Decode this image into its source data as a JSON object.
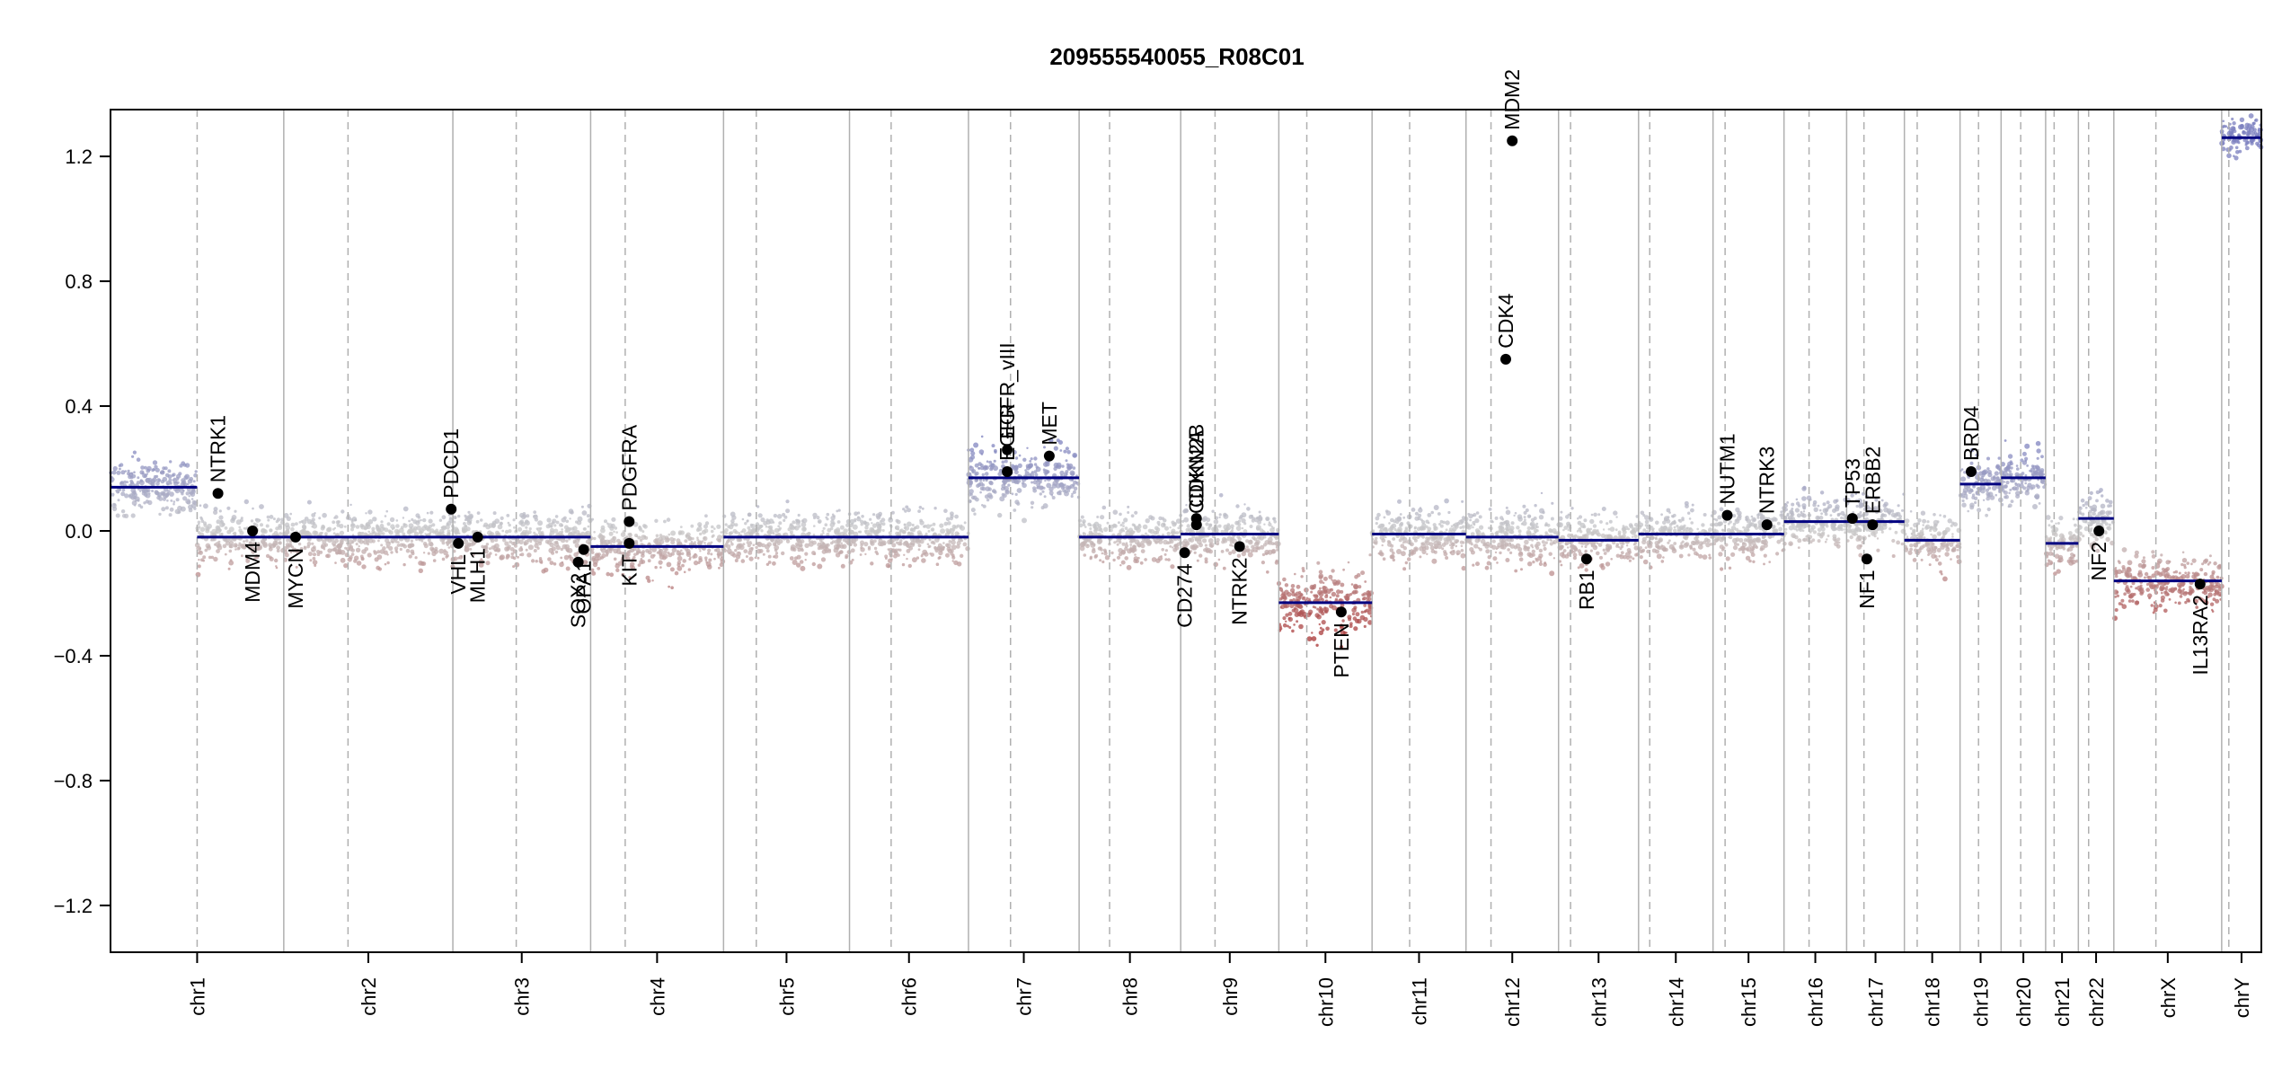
{
  "chart_data": {
    "type": "scatter",
    "title": "209555540055_R08C01",
    "xlabel": "",
    "ylabel": "",
    "ylim": [
      -1.35,
      1.35
    ],
    "yticks": [
      -1.2,
      -0.8,
      -0.4,
      0.0,
      0.4,
      0.8,
      1.2
    ],
    "ytick_labels": [
      "−1.2",
      "−0.8",
      "−0.4",
      "0.0",
      "0.4",
      "0.8",
      "1.2"
    ],
    "grid": false,
    "legend": "none",
    "colors": {
      "gain": "#7b7fbf",
      "neutral": "#c8c8c8",
      "loss": "#a83232",
      "segment": "#000080",
      "boundary": "#b0b0b0",
      "gene_point": "#000000"
    },
    "chromosomes": [
      {
        "name": "chr1",
        "size": 249,
        "centromere": 0.5
      },
      {
        "name": "chr2",
        "size": 243,
        "centromere": 0.38
      },
      {
        "name": "chr3",
        "size": 198,
        "centromere": 0.46
      },
      {
        "name": "chr4",
        "size": 191,
        "centromere": 0.26
      },
      {
        "name": "chr5",
        "size": 181,
        "centromere": 0.26
      },
      {
        "name": "chr6",
        "size": 171,
        "centromere": 0.35
      },
      {
        "name": "chr7",
        "size": 159,
        "centromere": 0.38
      },
      {
        "name": "chr8",
        "size": 146,
        "centromere": 0.3
      },
      {
        "name": "chr9",
        "size": 141,
        "centromere": 0.35
      },
      {
        "name": "chr10",
        "size": 134,
        "centromere": 0.3
      },
      {
        "name": "chr11",
        "size": 135,
        "centromere": 0.4
      },
      {
        "name": "chr12",
        "size": 133,
        "centromere": 0.27
      },
      {
        "name": "chr13",
        "size": 115,
        "centromere": 0.15
      },
      {
        "name": "chr14",
        "size": 107,
        "centromere": 0.15
      },
      {
        "name": "chr15",
        "size": 102,
        "centromere": 0.17
      },
      {
        "name": "chr16",
        "size": 90,
        "centromere": 0.4
      },
      {
        "name": "chr17",
        "size": 83,
        "centromere": 0.3
      },
      {
        "name": "chr18",
        "size": 80,
        "centromere": 0.23
      },
      {
        "name": "chr19",
        "size": 59,
        "centromere": 0.45
      },
      {
        "name": "chr20",
        "size": 64,
        "centromere": 0.44
      },
      {
        "name": "chr21",
        "size": 47,
        "centromere": 0.26
      },
      {
        "name": "chr22",
        "size": 51,
        "centromere": 0.29
      },
      {
        "name": "chrX",
        "size": 155,
        "centromere": 0.39
      },
      {
        "name": "chrY",
        "size": 57,
        "centromere": 0.18
      }
    ],
    "series": [
      {
        "profile": [
          {
            "chr": "chr1",
            "seg": [
              [
                0.0,
                0.5,
                0.14
              ],
              [
                0.5,
                1.0,
                -0.02
              ]
            ],
            "spread": 0.07
          },
          {
            "chr": "chr2",
            "seg": [
              [
                0.0,
                1.0,
                -0.02
              ]
            ],
            "spread": 0.07
          },
          {
            "chr": "chr3",
            "seg": [
              [
                0.0,
                1.0,
                -0.02
              ]
            ],
            "spread": 0.07
          },
          {
            "chr": "chr4",
            "seg": [
              [
                0.0,
                1.0,
                -0.05
              ]
            ],
            "spread": 0.07
          },
          {
            "chr": "chr5",
            "seg": [
              [
                0.0,
                1.0,
                -0.02
              ]
            ],
            "spread": 0.07
          },
          {
            "chr": "chr6",
            "seg": [
              [
                0.0,
                1.0,
                -0.02
              ]
            ],
            "spread": 0.07
          },
          {
            "chr": "chr7",
            "seg": [
              [
                0.0,
                1.0,
                0.17
              ]
            ],
            "spread": 0.08
          },
          {
            "chr": "chr8",
            "seg": [
              [
                0.0,
                1.0,
                -0.02
              ]
            ],
            "spread": 0.07
          },
          {
            "chr": "chr9",
            "seg": [
              [
                0.0,
                1.0,
                -0.01
              ]
            ],
            "spread": 0.07
          },
          {
            "chr": "chr10",
            "seg": [
              [
                0.0,
                1.0,
                -0.23
              ]
            ],
            "spread": 0.09
          },
          {
            "chr": "chr11",
            "seg": [
              [
                0.0,
                1.0,
                -0.01
              ]
            ],
            "spread": 0.07
          },
          {
            "chr": "chr12",
            "seg": [
              [
                0.0,
                1.0,
                -0.02
              ]
            ],
            "spread": 0.07
          },
          {
            "chr": "chr13",
            "seg": [
              [
                0.0,
                1.0,
                -0.03
              ]
            ],
            "spread": 0.07
          },
          {
            "chr": "chr14",
            "seg": [
              [
                0.0,
                1.0,
                -0.01
              ]
            ],
            "spread": 0.07
          },
          {
            "chr": "chr15",
            "seg": [
              [
                0.0,
                1.0,
                -0.01
              ]
            ],
            "spread": 0.07
          },
          {
            "chr": "chr16",
            "seg": [
              [
                0.0,
                1.0,
                0.03
              ]
            ],
            "spread": 0.07
          },
          {
            "chr": "chr17",
            "seg": [
              [
                0.0,
                1.0,
                0.03
              ]
            ],
            "spread": 0.07
          },
          {
            "chr": "chr18",
            "seg": [
              [
                0.0,
                1.0,
                -0.03
              ]
            ],
            "spread": 0.07
          },
          {
            "chr": "chr19",
            "seg": [
              [
                0.0,
                1.0,
                0.15
              ]
            ],
            "spread": 0.07
          },
          {
            "chr": "chr20",
            "seg": [
              [
                0.0,
                1.0,
                0.17
              ]
            ],
            "spread": 0.07
          },
          {
            "chr": "chr21",
            "seg": [
              [
                0.0,
                1.0,
                -0.04
              ]
            ],
            "spread": 0.07
          },
          {
            "chr": "chr22",
            "seg": [
              [
                0.0,
                1.0,
                0.04
              ]
            ],
            "spread": 0.07
          },
          {
            "chr": "chrX",
            "seg": [
              [
                0.0,
                1.0,
                -0.16
              ]
            ],
            "spread": 0.07
          },
          {
            "chr": "chrY",
            "seg": [
              [
                0.0,
                1.0,
                1.26
              ]
            ],
            "spread": 0.05
          }
        ]
      }
    ],
    "genes": [
      {
        "name": "NTRK1",
        "chr": "chr1",
        "pos": 0.62,
        "value": 0.12
      },
      {
        "name": "MDM4",
        "chr": "chr1",
        "pos": 0.82,
        "value": 0.0
      },
      {
        "name": "MYCN",
        "chr": "chr2",
        "pos": 0.07,
        "value": -0.02
      },
      {
        "name": "PDCD1",
        "chr": "chr2",
        "pos": 0.99,
        "value": 0.07
      },
      {
        "name": "VHL",
        "chr": "chr3",
        "pos": 0.04,
        "value": -0.04
      },
      {
        "name": "MLH1",
        "chr": "chr3",
        "pos": 0.18,
        "value": -0.02
      },
      {
        "name": "SOX2",
        "chr": "chr3",
        "pos": 0.91,
        "value": -0.1
      },
      {
        "name": "OPA1",
        "chr": "chr3",
        "pos": 0.95,
        "value": -0.06
      },
      {
        "name": "PDGFRA",
        "chr": "chr4",
        "pos": 0.29,
        "value": 0.03
      },
      {
        "name": "KIT",
        "chr": "chr4",
        "pos": 0.29,
        "value": -0.04
      },
      {
        "name": "EGFR",
        "chr": "chr7",
        "pos": 0.35,
        "value": 0.19
      },
      {
        "name": "EGFR_vIII",
        "chr": "chr7",
        "pos": 0.35,
        "value": 0.26
      },
      {
        "name": "MET",
        "chr": "chr7",
        "pos": 0.73,
        "value": 0.24
      },
      {
        "name": "CD274",
        "chr": "chr9",
        "pos": 0.04,
        "value": -0.07
      },
      {
        "name": "CDKN2A",
        "chr": "chr9",
        "pos": 0.16,
        "value": 0.02
      },
      {
        "name": "CDKN2B",
        "chr": "chr9",
        "pos": 0.16,
        "value": 0.04
      },
      {
        "name": "NTRK2",
        "chr": "chr9",
        "pos": 0.6,
        "value": -0.05
      },
      {
        "name": "PTEN",
        "chr": "chr10",
        "pos": 0.67,
        "value": -0.26
      },
      {
        "name": "CDK4",
        "chr": "chr12",
        "pos": 0.43,
        "value": 0.55
      },
      {
        "name": "MDM2",
        "chr": "chr12",
        "pos": 0.5,
        "value": 1.25
      },
      {
        "name": "RB1",
        "chr": "chr13",
        "pos": 0.35,
        "value": -0.09
      },
      {
        "name": "NUTM1",
        "chr": "chr15",
        "pos": 0.2,
        "value": 0.05
      },
      {
        "name": "NTRK3",
        "chr": "chr15",
        "pos": 0.76,
        "value": 0.02
      },
      {
        "name": "TP53",
        "chr": "chr17",
        "pos": 0.1,
        "value": 0.04
      },
      {
        "name": "NF1",
        "chr": "chr17",
        "pos": 0.35,
        "value": -0.09
      },
      {
        "name": "ERBB2",
        "chr": "chr17",
        "pos": 0.45,
        "value": 0.02
      },
      {
        "name": "BRD4",
        "chr": "chr19",
        "pos": 0.27,
        "value": 0.19
      },
      {
        "name": "NF2",
        "chr": "chr22",
        "pos": 0.58,
        "value": 0.0
      },
      {
        "name": "IL13RA2",
        "chr": "chrX",
        "pos": 0.8,
        "value": -0.17
      }
    ]
  }
}
